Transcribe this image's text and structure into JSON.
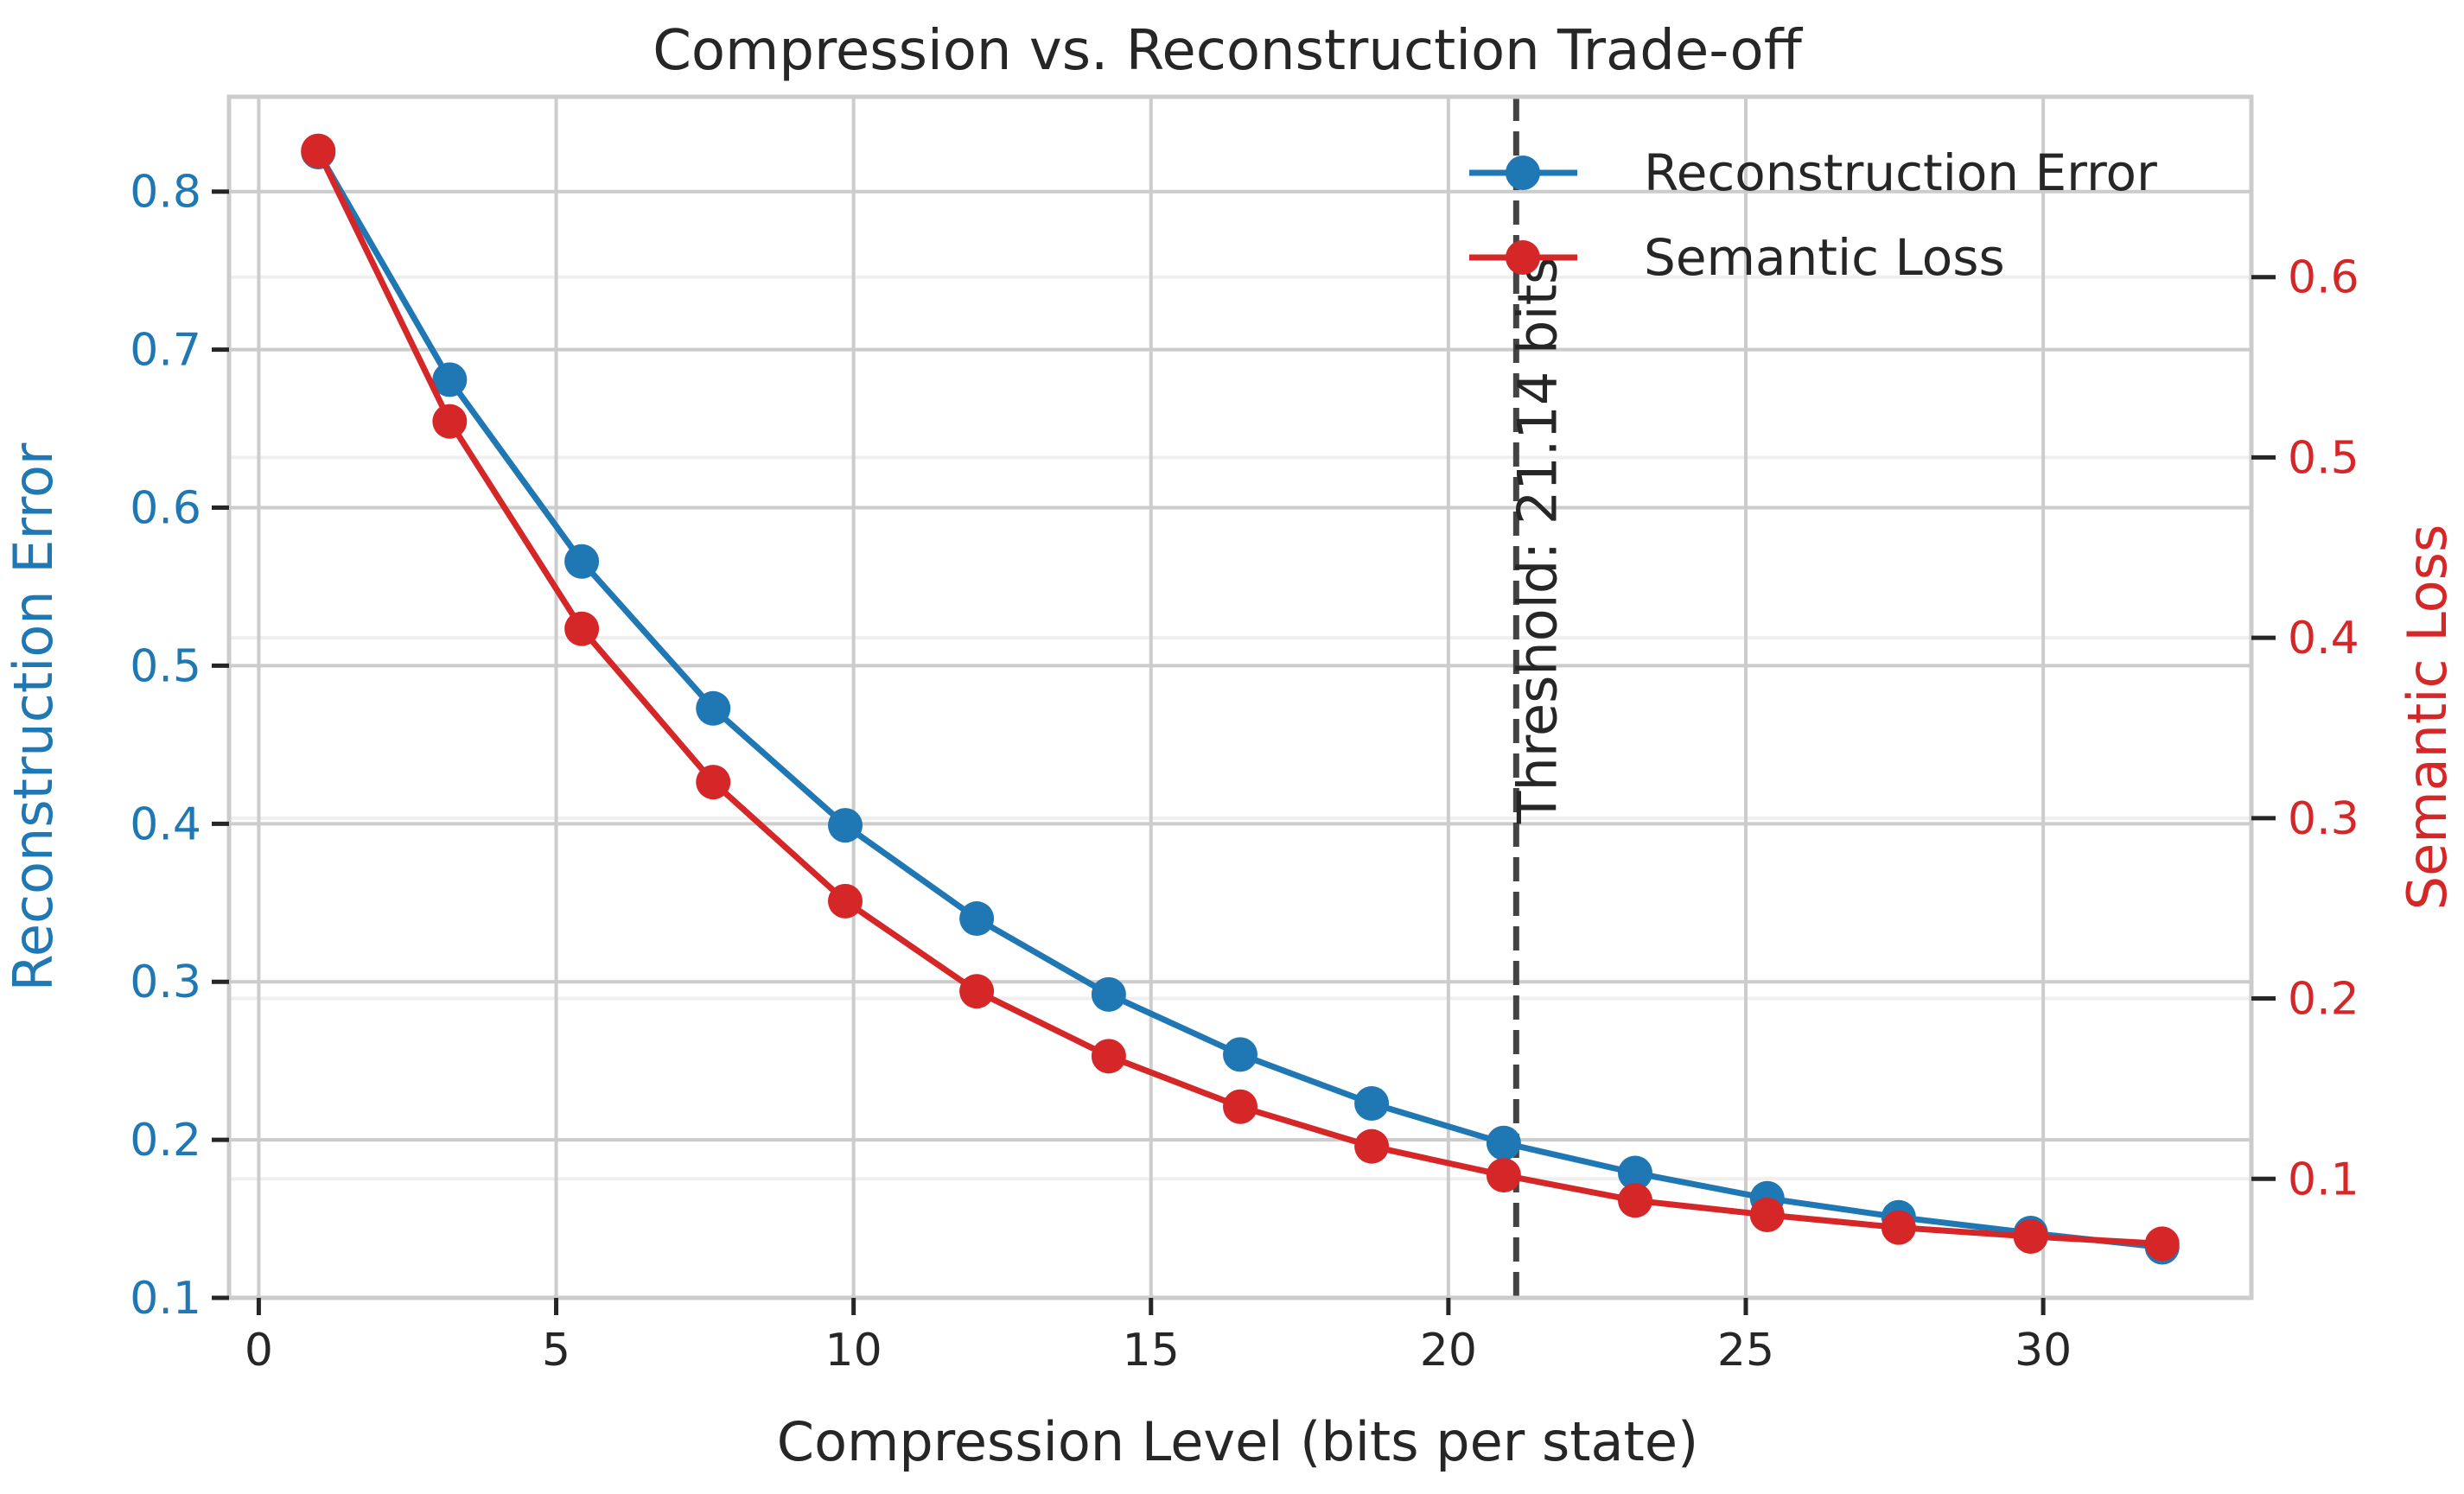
{
  "chart_data": {
    "type": "line",
    "title": "Compression vs. Reconstruction Trade-off",
    "xlabel": "Compression Level (bits per state)",
    "ylabel_left": "Reconstruction Error",
    "ylabel_right": "Semantic Loss",
    "xlim": [
      -0.5,
      33.5
    ],
    "ylim_left": [
      0.1,
      0.86
    ],
    "ylim_right": [
      0.034,
      0.7
    ],
    "x_ticks": [
      0,
      5,
      10,
      15,
      20,
      25,
      30
    ],
    "y_ticks_left": [
      0.1,
      0.2,
      0.3,
      0.4,
      0.5,
      0.6,
      0.7,
      0.8
    ],
    "y_ticks_right": [
      0.1,
      0.2,
      0.3,
      0.4,
      0.5,
      0.6
    ],
    "grid": true,
    "legend_position": "top-right",
    "x": [
      1,
      3.21,
      5.43,
      7.64,
      9.86,
      12.07,
      14.29,
      16.5,
      18.71,
      20.93,
      23.14,
      25.36,
      27.57,
      29.79,
      32
    ],
    "series": [
      {
        "name": "Reconstruction Error",
        "axis": "left",
        "color": "#1f77b4",
        "values": [
          0.825,
          0.681,
          0.566,
          0.473,
          0.399,
          0.34,
          0.292,
          0.254,
          0.223,
          0.198,
          0.179,
          0.163,
          0.151,
          0.141,
          0.132
        ]
      },
      {
        "name": "Semantic Loss",
        "axis": "right",
        "color": "#d62728",
        "values": [
          0.67,
          0.52,
          0.405,
          0.32,
          0.254,
          0.204,
          0.168,
          0.14,
          0.118,
          0.102,
          0.088,
          0.08,
          0.073,
          0.068,
          0.064
        ]
      }
    ],
    "threshold": {
      "x": 21.14,
      "label": "Threshold: 21.14 bits",
      "color": "#444444"
    }
  }
}
